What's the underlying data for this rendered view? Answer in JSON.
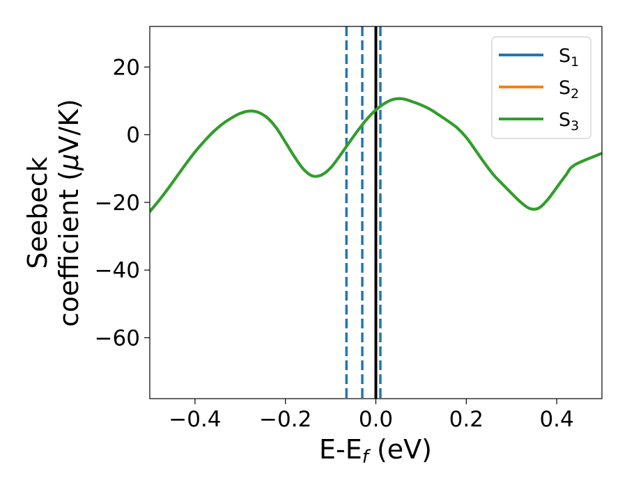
{
  "chart_data": {
    "type": "line",
    "xlabel": {
      "main": "E-E",
      "sub": "f",
      "suffix": " (eV)"
    },
    "ylabel": {
      "line1": "Seebeck",
      "line2a": "coefficient  (",
      "mu": "μ",
      "line2b": "V/K)"
    },
    "xlim": [
      -0.5,
      0.5
    ],
    "ylim": [
      -78,
      32
    ],
    "xticks": [
      {
        "value": -0.4,
        "label": "−0.4"
      },
      {
        "value": -0.2,
        "label": "−0.2"
      },
      {
        "value": 0.0,
        "label": "0.0"
      },
      {
        "value": 0.2,
        "label": "0.2"
      },
      {
        "value": 0.4,
        "label": "0.4"
      }
    ],
    "yticks": [
      {
        "value": 20,
        "label": "20"
      },
      {
        "value": 0,
        "label": "0"
      },
      {
        "value": -20,
        "label": "−20"
      },
      {
        "value": -40,
        "label": "−40"
      },
      {
        "value": -60,
        "label": "−60"
      }
    ],
    "grid": false,
    "legend_position": "top-right",
    "series": [
      {
        "name": "S",
        "sub": "1",
        "color": "#1f77b4",
        "y": [
          -22.7,
          -19.5,
          -16.0,
          -12.3,
          -8.6,
          -5.1,
          -2.0,
          0.8,
          3.1,
          4.9,
          6.3,
          7.0,
          6.6,
          5.0,
          2.0,
          -2.2,
          -6.5,
          -10.2,
          -12.2,
          -11.9,
          -9.8,
          -6.3,
          -2.5,
          1.2,
          4.6,
          7.3,
          9.3,
          10.5,
          10.6,
          9.8,
          8.8,
          7.5,
          5.8,
          4.0,
          2.0,
          -0.8,
          -4.5,
          -8.3,
          -11.8,
          -14.6,
          -17.3,
          -19.9,
          -21.8,
          -21.7,
          -19.2,
          -15.6,
          -12.0,
          -8.9,
          -5.5
        ]
      },
      {
        "name": "S",
        "sub": "2",
        "color": "#ff7f0e",
        "y": [
          -22.7,
          -19.5,
          -16.0,
          -12.3,
          -8.6,
          -5.1,
          -2.0,
          0.8,
          3.1,
          4.9,
          6.3,
          7.0,
          6.6,
          5.0,
          2.0,
          -2.2,
          -6.5,
          -10.2,
          -12.2,
          -11.9,
          -9.8,
          -6.3,
          -2.5,
          1.2,
          4.6,
          7.3,
          9.3,
          10.5,
          10.6,
          9.8,
          8.8,
          7.5,
          5.8,
          4.0,
          2.0,
          -0.8,
          -4.5,
          -8.3,
          -11.8,
          -14.6,
          -17.3,
          -19.9,
          -21.8,
          -21.7,
          -19.2,
          -15.6,
          -12.0,
          -8.9,
          -5.5
        ]
      },
      {
        "name": "S",
        "sub": "3",
        "color": "#2ca02c",
        "y": [
          -22.7,
          -19.5,
          -16.0,
          -12.3,
          -8.6,
          -5.1,
          -2.0,
          0.8,
          3.1,
          4.9,
          6.3,
          7.0,
          6.6,
          5.0,
          2.0,
          -2.2,
          -6.5,
          -10.2,
          -12.2,
          -11.9,
          -9.8,
          -6.3,
          -2.5,
          1.2,
          4.6,
          7.3,
          9.3,
          10.5,
          10.6,
          9.8,
          8.8,
          7.5,
          5.8,
          4.0,
          2.0,
          -0.8,
          -4.5,
          -8.3,
          -11.8,
          -14.6,
          -17.3,
          -19.9,
          -21.8,
          -21.7,
          -19.2,
          -15.6,
          -12.0,
          -8.9,
          -5.5
        ]
      }
    ],
    "x": [
      -0.5,
      -0.48,
      -0.46,
      -0.44,
      -0.42,
      -0.4,
      -0.38,
      -0.36,
      -0.34,
      -0.32,
      -0.3,
      -0.28,
      -0.26,
      -0.24,
      -0.22,
      -0.2,
      -0.18,
      -0.16,
      -0.14,
      -0.12,
      -0.1,
      -0.08,
      -0.06,
      -0.04,
      -0.02,
      0.0,
      0.02,
      0.04,
      0.06,
      0.08,
      0.1,
      0.12,
      0.14,
      0.16,
      0.18,
      0.2,
      0.22,
      0.24,
      0.26,
      0.28,
      0.3,
      0.32,
      0.34,
      0.36,
      0.38,
      0.4,
      0.42,
      0.44,
      0.5
    ],
    "vlines": [
      {
        "x": -0.065,
        "color": "#1f77b4",
        "style": "dashed"
      },
      {
        "x": -0.03,
        "color": "#1f77b4",
        "style": "dashed"
      },
      {
        "x": 0.01,
        "color": "#1f77b4",
        "style": "dashed"
      },
      {
        "x": 0.0,
        "color": "#000000",
        "style": "solid"
      }
    ]
  }
}
